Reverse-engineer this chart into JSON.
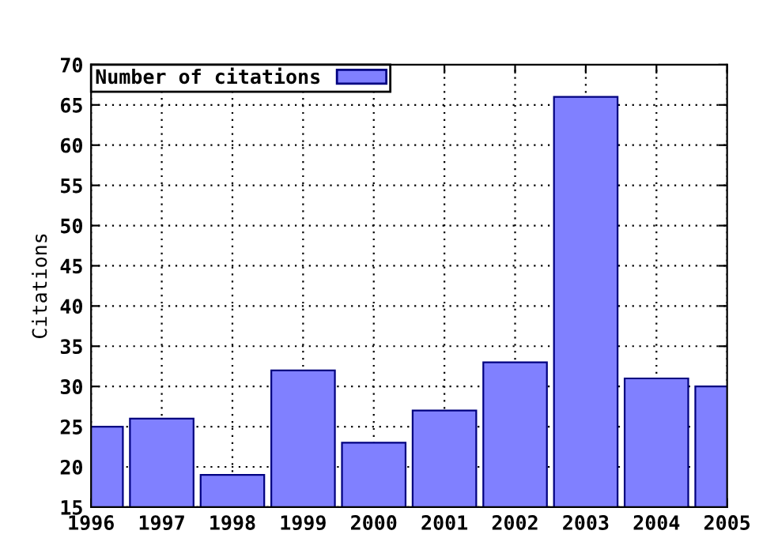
{
  "chart_data": {
    "type": "bar",
    "ylabel": "Citations",
    "x": [
      1996,
      1997,
      1998,
      1999,
      2000,
      2001,
      2002,
      2003,
      2004,
      2005
    ],
    "series": [
      {
        "name": "Number of citations",
        "color": "#8080ff",
        "values": [
          25,
          26,
          19,
          32,
          23,
          27,
          33,
          66,
          31,
          30
        ]
      }
    ],
    "xlim": [
      1996,
      2005
    ],
    "xticks": [
      1996,
      1997,
      1998,
      1999,
      2000,
      2001,
      2002,
      2003,
      2004,
      2005
    ],
    "ylim": [
      15,
      70
    ],
    "yticks": [
      15,
      20,
      25,
      30,
      35,
      40,
      45,
      50,
      55,
      60,
      65,
      70
    ],
    "grid": true,
    "legend": "top left"
  }
}
